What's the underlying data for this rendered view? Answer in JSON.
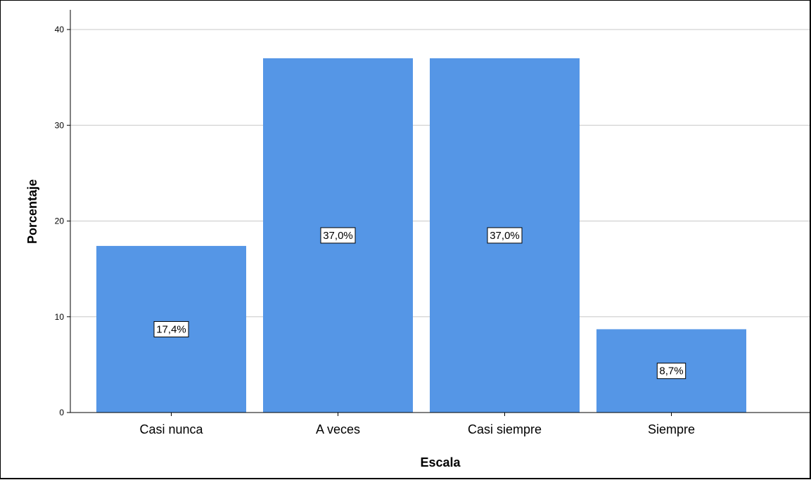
{
  "chart_data": {
    "type": "bar",
    "categories": [
      "Casi nunca",
      "A veces",
      "Casi siempre",
      "Siempre"
    ],
    "values": [
      17.4,
      37.0,
      37.0,
      8.7
    ],
    "data_labels": [
      "17,4%",
      "37,0%",
      "37,0%",
      "8,7%"
    ],
    "title": "",
    "xlabel": "Escala",
    "ylabel": "Porcentaje",
    "ylim": [
      0,
      40
    ],
    "yticks": [
      "0",
      "10",
      "20",
      "30",
      "40"
    ],
    "grid": true,
    "legend": "none",
    "bar_color": "#5596e6"
  }
}
